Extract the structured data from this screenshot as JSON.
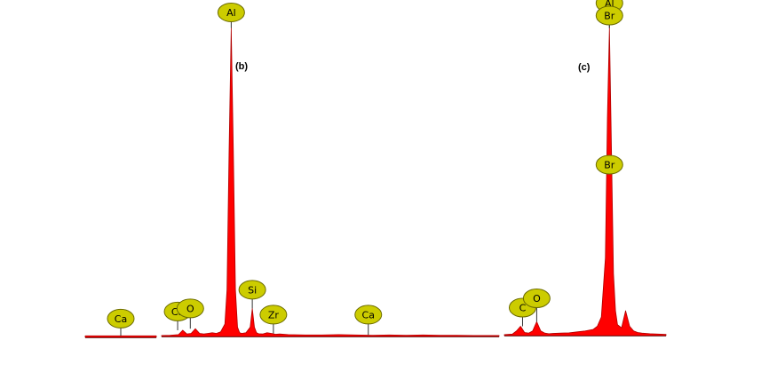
{
  "colors": {
    "spectrum": "#ff0000",
    "spectrum_edge": "#b00000",
    "badge": "#cccc00",
    "badge_edge": "#6b6b00",
    "axis": "#555555"
  },
  "chart_data": [
    {
      "type": "area",
      "panel": "",
      "title": "",
      "xlabel": "",
      "ylabel": "",
      "x": [
        0,
        1,
        2,
        3,
        4,
        5,
        6,
        7,
        8,
        9,
        10
      ],
      "values": [
        0.5,
        0.5,
        0.5,
        0.5,
        0.5,
        0.5,
        0.5,
        0.5,
        0.5,
        0.5,
        0.5
      ],
      "xlim": [
        0,
        10
      ],
      "ylim": [
        0,
        100
      ],
      "peaks": [
        {
          "label": "Ca",
          "x": 5,
          "y": 0.5,
          "tag_y": 6
        }
      ]
    },
    {
      "type": "area",
      "panel": "(b)",
      "title": "",
      "xlabel": "",
      "ylabel": "",
      "x": [
        0,
        2,
        4,
        5,
        6,
        7,
        8,
        9,
        10,
        11,
        12,
        13,
        14,
        15,
        15.5,
        16,
        16.5,
        17,
        17.5,
        18,
        18.5,
        19,
        20,
        21,
        21.5,
        22,
        22.5,
        23,
        24,
        25,
        26,
        27,
        28,
        30,
        34,
        38,
        42,
        46,
        50,
        54,
        58,
        62,
        66,
        70,
        74,
        80
      ],
      "values": [
        0.3,
        0.4,
        0.6,
        2.0,
        0.8,
        1.0,
        2.5,
        1.0,
        0.8,
        1.0,
        1.2,
        1.0,
        1.5,
        4.0,
        15,
        60,
        99,
        60,
        15,
        3,
        1.2,
        1.0,
        1.2,
        3.0,
        9.0,
        3.0,
        1.2,
        0.9,
        0.8,
        1.2,
        1.0,
        0.7,
        0.8,
        0.6,
        0.5,
        0.5,
        0.6,
        0.5,
        0.4,
        0.5,
        0.4,
        0.5,
        0.4,
        0.4,
        0.3,
        0.3
      ],
      "xlim": [
        0,
        80
      ],
      "ylim": [
        0,
        100
      ],
      "peaks": [
        {
          "label": "Ca",
          "x": 3.8,
          "y": 2.0,
          "tag_y": 8
        },
        {
          "label": "O",
          "x": 6.8,
          "y": 2.5,
          "tag_y": 9
        },
        {
          "label": "Al",
          "x": 16.5,
          "y": 99,
          "tag_y": 104
        },
        {
          "label": "Si",
          "x": 21.5,
          "y": 9,
          "tag_y": 15
        },
        {
          "label": "Zr",
          "x": 26.5,
          "y": 1.0,
          "tag_y": 7
        },
        {
          "label": "Ca",
          "x": 49,
          "y": 0.5,
          "tag_y": 7
        }
      ]
    },
    {
      "type": "area",
      "panel": "(c)",
      "title": "",
      "xlabel": "",
      "ylabel": "",
      "x": [
        0,
        2,
        3,
        4,
        5,
        6,
        7,
        8,
        9,
        10,
        11,
        12,
        14,
        16,
        18,
        20,
        22,
        23,
        24,
        25,
        25.5,
        26,
        26.5,
        27,
        27.5,
        28,
        29,
        30,
        31,
        32,
        33,
        34,
        36,
        38,
        40
      ],
      "values": [
        0.3,
        0.5,
        1.5,
        3.0,
        1.0,
        0.8,
        1.5,
        4.5,
        1.5,
        0.8,
        0.6,
        0.7,
        0.8,
        0.9,
        1.2,
        1.5,
        2.0,
        3.0,
        6.0,
        25,
        70,
        99,
        60,
        20,
        8,
        3.5,
        2.5,
        8.0,
        3.0,
        1.5,
        1.0,
        0.8,
        0.6,
        0.5,
        0.4
      ],
      "xlim": [
        0,
        40
      ],
      "ylim": [
        0,
        100
      ],
      "peaks": [
        {
          "label": "C",
          "x": 4.5,
          "y": 3.0,
          "tag_y": 9
        },
        {
          "label": "O",
          "x": 8,
          "y": 4.5,
          "tag_y": 12
        },
        {
          "label": "Br",
          "x": 26,
          "y": 55,
          "tag_y": 55
        },
        {
          "label": "Al",
          "x": 26,
          "y": 99,
          "tag_y": 107
        },
        {
          "label": "Br",
          "x": 26,
          "y": 99,
          "tag_y": 103
        }
      ]
    }
  ]
}
